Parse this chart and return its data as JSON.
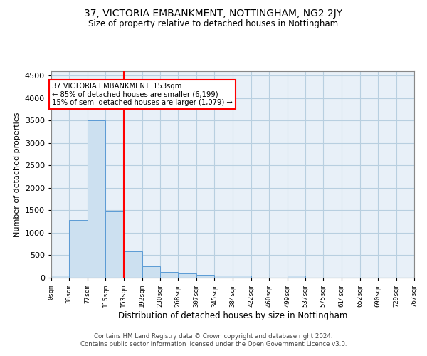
{
  "title": "37, VICTORIA EMBANKMENT, NOTTINGHAM, NG2 2JY",
  "subtitle": "Size of property relative to detached houses in Nottingham",
  "xlabel": "Distribution of detached houses by size in Nottingham",
  "ylabel": "Number of detached properties",
  "bar_edges": [
    0,
    38,
    77,
    115,
    153,
    192,
    230,
    268,
    307,
    345,
    384,
    422,
    460,
    499,
    537,
    575,
    614,
    652,
    690,
    729,
    767
  ],
  "bar_heights": [
    50,
    1280,
    3500,
    1470,
    580,
    250,
    130,
    90,
    60,
    50,
    50,
    0,
    0,
    50,
    0,
    0,
    0,
    0,
    0,
    0
  ],
  "bar_color": "#cce0f0",
  "bar_edgecolor": "#5b9bd5",
  "property_line_x": 153,
  "property_line_color": "red",
  "annotation_line1": "37 VICTORIA EMBANKMENT: 153sqm",
  "annotation_line2": "← 85% of detached houses are smaller (6,199)",
  "annotation_line3": "15% of semi-detached houses are larger (1,079) →",
  "annotation_box_color": "white",
  "annotation_box_edgecolor": "red",
  "ylim": [
    0,
    4600
  ],
  "yticks": [
    0,
    500,
    1000,
    1500,
    2000,
    2500,
    3000,
    3500,
    4000,
    4500
  ],
  "grid_color": "#b8cfe0",
  "background_color": "#e8f0f8",
  "footer_text": "Contains HM Land Registry data © Crown copyright and database right 2024.\nContains public sector information licensed under the Open Government Licence v3.0.",
  "tick_labels": [
    "0sqm",
    "38sqm",
    "77sqm",
    "115sqm",
    "153sqm",
    "192sqm",
    "230sqm",
    "268sqm",
    "307sqm",
    "345sqm",
    "384sqm",
    "422sqm",
    "460sqm",
    "499sqm",
    "537sqm",
    "575sqm",
    "614sqm",
    "652sqm",
    "690sqm",
    "729sqm",
    "767sqm"
  ]
}
